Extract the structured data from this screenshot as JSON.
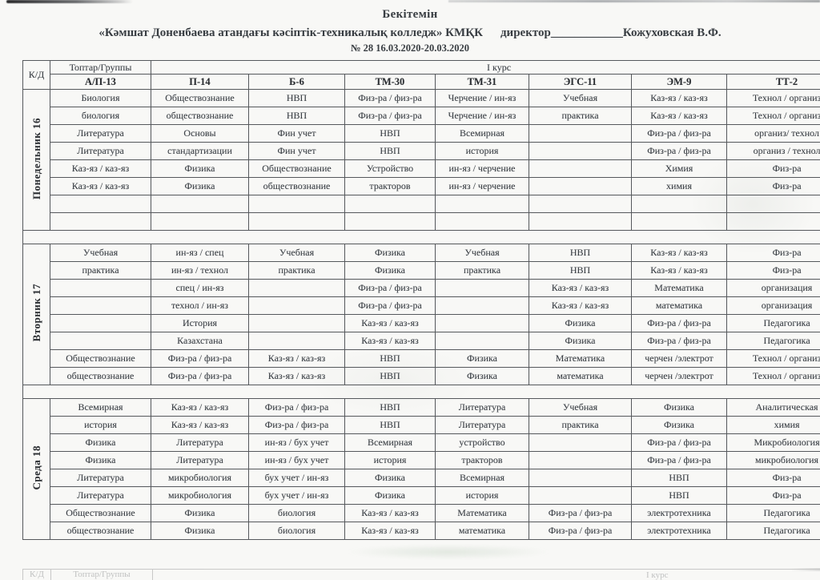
{
  "header": {
    "approve": "Бекітемін",
    "college_title": "«Кәмшат Доненбаева атандағы кәсіптік-техникалық колледж» КМҚК",
    "director_label": "директор",
    "director_blank": "____________",
    "director_name": "Кожуховская В.Ф.",
    "order_line": "№ 28  16.03.2020-20.03.2020"
  },
  "table": {
    "corner_label": "К/Д",
    "groups_label": "Топтар/Группы",
    "course_label": "І курс",
    "columns": [
      "А/П-13",
      "П-14",
      "Б-6",
      "ТМ-30",
      "ТМ-31",
      "ЭГС-11",
      "ЭМ-9",
      "ТТ-2"
    ],
    "days": [
      {
        "label": "Понедельник 16",
        "rows": [
          [
            "Биология",
            "Обществознание",
            "НВП",
            "Физ-ра / физ-ра",
            "Черчение / ин-яз",
            "Учебная",
            "Каз-яз / каз-яз",
            "Технол / организ"
          ],
          [
            "биология",
            "обществознание",
            "НВП",
            "Физ-ра / физ-ра",
            "Черчение / ин-яз",
            "практика",
            "Каз-яз / каз-яз",
            "Технол / организ"
          ],
          [
            "Литература",
            "Основы",
            "Фин учет",
            "НВП",
            "Всемирная",
            "",
            "Физ-ра / физ-ра",
            "организ/ технол"
          ],
          [
            "Литература",
            "стандартизации",
            "Фин учет",
            "НВП",
            "история",
            "",
            "Физ-ра / физ-ра",
            "организ / технол"
          ],
          [
            "Каз-яз / каз-яз",
            "Физика",
            "Обществознание",
            "Устройство",
            "ин-яз / черчение",
            "",
            "Химия",
            "Физ-ра"
          ],
          [
            "Каз-яз / каз-яз",
            "Физика",
            "обществознание",
            "тракторов",
            "ин-яз / черчение",
            "",
            "химия",
            "Физ-ра"
          ],
          [
            "",
            "",
            "",
            "",
            "",
            "",
            "",
            ""
          ],
          [
            "",
            "",
            "",
            "",
            "",
            "",
            "",
            ""
          ]
        ]
      },
      {
        "label": "Вторник 17",
        "rows": [
          [
            "Учебная",
            "ин-яз / спец",
            "Учебная",
            "Физика",
            "Учебная",
            "НВП",
            "Каз-яз / каз-яз",
            "Физ-ра"
          ],
          [
            "практика",
            "ин-яз / технол",
            "практика",
            "Физика",
            "практика",
            "НВП",
            "Каз-яз / каз-яз",
            "Физ-ра"
          ],
          [
            "",
            "спец / ин-яз",
            "",
            "Физ-ра / физ-ра",
            "",
            "Каз-яз / каз-яз",
            "Математика",
            "организация"
          ],
          [
            "",
            "технол / ин-яз",
            "",
            "Физ-ра / физ-ра",
            "",
            "Каз-яз / каз-яз",
            "математика",
            "организация"
          ],
          [
            "",
            "История",
            "",
            "Каз-яз / каз-яз",
            "",
            "Физика",
            "Физ-ра / физ-ра",
            "Педагогика"
          ],
          [
            "",
            "Казахстана",
            "",
            "Каз-яз / каз-яз",
            "",
            "Физика",
            "Физ-ра / физ-ра",
            "Педагогика"
          ],
          [
            "Обществознание",
            "Физ-ра / физ-ра",
            "Каз-яз / каз-яз",
            "НВП",
            "Физика",
            "Математика",
            "черчен /электрот",
            "Технол / организ"
          ],
          [
            "обществознание",
            "Физ-ра / физ-ра",
            "Каз-яз / каз-яз",
            "НВП",
            "Физика",
            "математика",
            "черчен /электрот",
            "Технол / организ"
          ]
        ]
      },
      {
        "label": "Среда 18",
        "rows": [
          [
            "Всемирная",
            "Каз-яз / каз-яз",
            "Физ-ра / физ-ра",
            "НВП",
            "Литература",
            "Учебная",
            "Физика",
            "Аналитическая"
          ],
          [
            "история",
            "Каз-яз / каз-яз",
            "Физ-ра / физ-ра",
            "НВП",
            "Литература",
            "практика",
            "Физика",
            "химия"
          ],
          [
            "Физика",
            "Литература",
            "ин-яз / бух учет",
            "Всемирная",
            "устройство",
            "",
            "Физ-ра / физ-ра",
            "Микробиология"
          ],
          [
            "Физика",
            "Литература",
            "ин-яз / бух учет",
            "история",
            "тракторов",
            "",
            "Физ-ра / физ-ра",
            "микробиология"
          ],
          [
            "Литература",
            "микробиология",
            "бух учет / ин-яз",
            "Физика",
            "Всемирная",
            "",
            "НВП",
            "Физ-ра"
          ],
          [
            "Литература",
            "микробиология",
            "бух учет / ин-яз",
            "Физика",
            "история",
            "",
            "НВП",
            "Физ-ра"
          ],
          [
            "Обществознание",
            "Физика",
            "биология",
            "Каз-яз / каз-яз",
            "Математика",
            "Физ-ра / физ-ра",
            "электротехника",
            "Педагогика"
          ],
          [
            "обществознание",
            "Физика",
            "биология",
            "Каз-яз / каз-яз",
            "математика",
            "Физ-ра / физ-ра",
            "электротехника",
            "Педагогика"
          ]
        ]
      }
    ]
  },
  "next_page_fragment": {
    "corner_label": "К/Д",
    "groups_label": "Топтар/Группы",
    "course_label": "І курс"
  }
}
